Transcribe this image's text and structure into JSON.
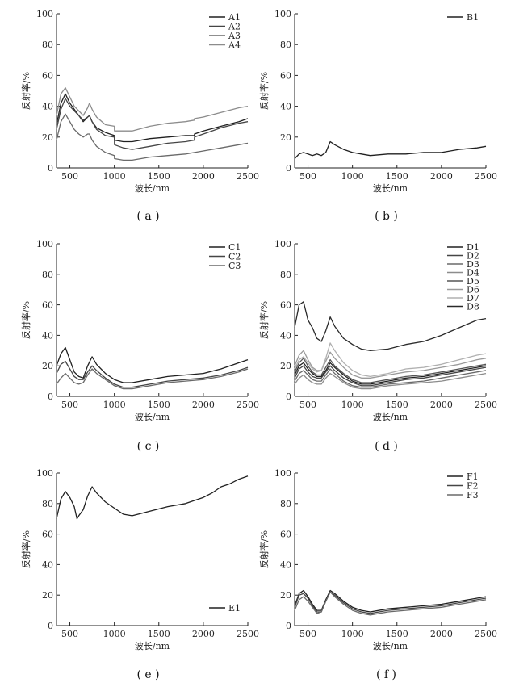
{
  "figure": {
    "panel_labels": [
      "( a )",
      "( b )",
      "( c )",
      "( d )",
      "( e )",
      "( f )"
    ]
  },
  "colors": {
    "axis": "#222222",
    "series": [
      "#202020",
      "#454545",
      "#6a6a6a",
      "#8c8c8c",
      "#555555",
      "#9a9a9a",
      "#b0b0b0",
      "#2a2a2a"
    ]
  },
  "chart_data": [
    {
      "id": "a",
      "type": "line",
      "xlabel": "波长/nm",
      "ylabel": "反射率/%",
      "xlim": [
        350,
        2500
      ],
      "ylim": [
        0,
        100
      ],
      "xticks": [
        500,
        1000,
        1500,
        2000,
        2500
      ],
      "yticks": [
        0,
        20,
        40,
        60,
        80,
        100
      ],
      "grid": false,
      "legend": "top-right",
      "series": [
        {
          "name": "A1",
          "x": [
            350,
            400,
            450,
            500,
            550,
            600,
            650,
            700,
            720,
            750,
            800,
            900,
            1000,
            1001,
            1100,
            1200,
            1400,
            1600,
            1800,
            1899,
            1900,
            2000,
            2200,
            2400,
            2500
          ],
          "y": [
            28,
            42,
            48,
            42,
            38,
            34,
            30,
            33,
            34,
            30,
            26,
            23,
            21,
            18,
            17,
            17,
            19,
            20,
            21,
            21,
            22,
            24,
            27,
            30,
            32
          ]
        },
        {
          "name": "A2",
          "x": [
            350,
            400,
            450,
            500,
            550,
            600,
            650,
            700,
            720,
            750,
            800,
            900,
            1000,
            1001,
            1100,
            1200,
            1400,
            1600,
            1800,
            1899,
            1900,
            2000,
            2200,
            2400,
            2500
          ],
          "y": [
            25,
            38,
            45,
            40,
            37,
            34,
            31,
            33,
            34,
            30,
            25,
            21,
            20,
            15,
            13,
            12,
            14,
            16,
            17,
            18,
            20,
            22,
            26,
            29,
            30
          ]
        },
        {
          "name": "A3",
          "x": [
            350,
            400,
            450,
            500,
            550,
            600,
            650,
            700,
            720,
            750,
            800,
            900,
            1000,
            1001,
            1100,
            1200,
            1400,
            1600,
            1800,
            1899,
            1900,
            2000,
            2200,
            2400,
            2500
          ],
          "y": [
            18,
            30,
            35,
            30,
            25,
            22,
            20,
            22,
            22,
            18,
            14,
            10,
            8,
            6,
            5,
            5,
            7,
            8,
            9,
            10,
            10,
            11,
            13,
            15,
            16
          ]
        },
        {
          "name": "A4",
          "x": [
            350,
            400,
            450,
            500,
            550,
            600,
            650,
            700,
            720,
            750,
            800,
            900,
            1000,
            1001,
            1100,
            1200,
            1400,
            1600,
            1800,
            1899,
            1900,
            2000,
            2200,
            2400,
            2500
          ],
          "y": [
            34,
            48,
            52,
            46,
            40,
            37,
            34,
            39,
            42,
            38,
            33,
            28,
            27,
            24,
            24,
            24,
            27,
            29,
            30,
            31,
            32,
            33,
            36,
            39,
            40
          ]
        }
      ]
    },
    {
      "id": "b",
      "type": "line",
      "xlabel": "波长/nm",
      "ylabel": "反射率/%",
      "xlim": [
        350,
        2500
      ],
      "ylim": [
        0,
        100
      ],
      "xticks": [
        500,
        1000,
        1500,
        2000,
        2500
      ],
      "yticks": [
        0,
        20,
        40,
        60,
        80,
        100
      ],
      "grid": false,
      "legend": "top-right",
      "series": [
        {
          "name": "B1",
          "x": [
            350,
            400,
            450,
            500,
            550,
            600,
            650,
            700,
            750,
            800,
            900,
            1000,
            1100,
            1200,
            1400,
            1600,
            1800,
            2000,
            2200,
            2400,
            2500
          ],
          "y": [
            6,
            9,
            10,
            9,
            8,
            9,
            8,
            10,
            17,
            15,
            12,
            10,
            9,
            8,
            9,
            9,
            10,
            10,
            12,
            13,
            14
          ]
        }
      ]
    },
    {
      "id": "c",
      "type": "line",
      "xlabel": "波长/nm",
      "ylabel": "反射率/%",
      "xlim": [
        350,
        2500
      ],
      "ylim": [
        0,
        100
      ],
      "xticks": [
        500,
        1000,
        1500,
        2000,
        2500
      ],
      "yticks": [
        0,
        20,
        40,
        60,
        80,
        100
      ],
      "grid": false,
      "legend": "top-right",
      "series": [
        {
          "name": "C1",
          "x": [
            350,
            400,
            450,
            500,
            550,
            600,
            650,
            700,
            750,
            800,
            900,
            1000,
            1100,
            1200,
            1400,
            1600,
            1800,
            2000,
            2200,
            2400,
            2500
          ],
          "y": [
            20,
            28,
            32,
            24,
            16,
            13,
            12,
            20,
            26,
            21,
            15,
            11,
            9,
            9,
            11,
            13,
            14,
            15,
            18,
            22,
            24
          ]
        },
        {
          "name": "C2",
          "x": [
            350,
            400,
            450,
            500,
            550,
            600,
            650,
            700,
            750,
            800,
            900,
            1000,
            1100,
            1200,
            1400,
            1600,
            1800,
            2000,
            2200,
            2400,
            2500
          ],
          "y": [
            15,
            21,
            23,
            18,
            13,
            11,
            11,
            16,
            20,
            17,
            12,
            8,
            6,
            6,
            8,
            10,
            11,
            12,
            14,
            17,
            19
          ]
        },
        {
          "name": "C3",
          "x": [
            350,
            400,
            450,
            500,
            550,
            600,
            650,
            700,
            750,
            800,
            900,
            1000,
            1100,
            1200,
            1400,
            1600,
            1800,
            2000,
            2200,
            2400,
            2500
          ],
          "y": [
            8,
            12,
            15,
            12,
            9,
            8,
            9,
            14,
            18,
            15,
            11,
            7,
            5,
            5,
            7,
            9,
            10,
            11,
            13,
            16,
            18
          ]
        }
      ]
    },
    {
      "id": "d",
      "type": "line",
      "xlabel": "波长/nm",
      "ylabel": "反射率/%",
      "xlim": [
        350,
        2500
      ],
      "ylim": [
        0,
        100
      ],
      "xticks": [
        500,
        1000,
        1500,
        2000,
        2500
      ],
      "yticks": [
        0,
        20,
        40,
        60,
        80,
        100
      ],
      "grid": false,
      "legend": "top-right",
      "series": [
        {
          "name": "D1",
          "x": [
            350,
            400,
            450,
            500,
            550,
            600,
            650,
            700,
            750,
            800,
            900,
            1000,
            1100,
            1200,
            1400,
            1600,
            1800,
            2000,
            2200,
            2400,
            2500
          ],
          "y": [
            14,
            20,
            22,
            18,
            15,
            13,
            13,
            17,
            22,
            19,
            14,
            10,
            8,
            8,
            10,
            12,
            13,
            15,
            17,
            19,
            20
          ]
        },
        {
          "name": "D2",
          "x": [
            350,
            400,
            450,
            500,
            550,
            600,
            650,
            700,
            750,
            800,
            900,
            1000,
            1100,
            1200,
            1400,
            1600,
            1800,
            2000,
            2200,
            2400,
            2500
          ],
          "y": [
            12,
            18,
            20,
            16,
            13,
            12,
            12,
            16,
            20,
            17,
            12,
            9,
            7,
            7,
            9,
            11,
            12,
            14,
            16,
            18,
            19
          ]
        },
        {
          "name": "D3",
          "x": [
            350,
            400,
            450,
            500,
            550,
            600,
            650,
            700,
            750,
            800,
            900,
            1000,
            1100,
            1200,
            1400,
            1600,
            1800,
            2000,
            2200,
            2400,
            2500
          ],
          "y": [
            10,
            15,
            17,
            14,
            11,
            10,
            10,
            14,
            18,
            15,
            10,
            7,
            6,
            6,
            8,
            9,
            10,
            12,
            14,
            16,
            17
          ]
        },
        {
          "name": "D4",
          "x": [
            350,
            400,
            450,
            500,
            550,
            600,
            650,
            700,
            750,
            800,
            900,
            1000,
            1100,
            1200,
            1400,
            1600,
            1800,
            2000,
            2200,
            2400,
            2500
          ],
          "y": [
            8,
            12,
            14,
            11,
            9,
            8,
            8,
            12,
            15,
            13,
            9,
            6,
            5,
            5,
            7,
            8,
            9,
            10,
            12,
            14,
            15
          ]
        },
        {
          "name": "D5",
          "x": [
            350,
            400,
            450,
            500,
            550,
            600,
            650,
            700,
            750,
            800,
            900,
            1000,
            1100,
            1200,
            1400,
            1600,
            1800,
            2000,
            2200,
            2400,
            2500
          ],
          "y": [
            16,
            22,
            25,
            20,
            16,
            14,
            14,
            19,
            24,
            20,
            15,
            11,
            9,
            9,
            11,
            13,
            14,
            16,
            18,
            20,
            21
          ]
        },
        {
          "name": "D6",
          "x": [
            350,
            400,
            450,
            500,
            550,
            600,
            650,
            700,
            750,
            800,
            900,
            1000,
            1100,
            1200,
            1400,
            1600,
            1800,
            2000,
            2200,
            2400,
            2500
          ],
          "y": [
            20,
            27,
            30,
            24,
            19,
            17,
            17,
            23,
            29,
            25,
            19,
            14,
            12,
            12,
            14,
            16,
            17,
            19,
            21,
            24,
            25
          ]
        },
        {
          "name": "D7",
          "x": [
            350,
            400,
            450,
            500,
            550,
            600,
            650,
            700,
            750,
            800,
            900,
            1000,
            1100,
            1200,
            1400,
            1600,
            1800,
            2000,
            2200,
            2400,
            2500
          ],
          "y": [
            18,
            24,
            26,
            22,
            18,
            16,
            17,
            25,
            35,
            30,
            22,
            17,
            14,
            13,
            15,
            18,
            19,
            21,
            24,
            27,
            28
          ]
        },
        {
          "name": "D8",
          "x": [
            350,
            400,
            450,
            500,
            550,
            600,
            650,
            700,
            750,
            800,
            900,
            1000,
            1100,
            1200,
            1400,
            1600,
            1800,
            2000,
            2200,
            2400,
            2500
          ],
          "y": [
            45,
            60,
            62,
            50,
            45,
            38,
            36,
            43,
            52,
            46,
            38,
            34,
            31,
            30,
            31,
            34,
            36,
            40,
            45,
            50,
            51
          ]
        }
      ]
    },
    {
      "id": "e",
      "type": "line",
      "xlabel": "波长/nm",
      "ylabel": "反射率/%",
      "xlim": [
        350,
        2500
      ],
      "ylim": [
        0,
        100
      ],
      "xticks": [
        500,
        1000,
        1500,
        2000,
        2500
      ],
      "yticks": [
        0,
        20,
        40,
        60,
        80,
        100
      ],
      "grid": false,
      "legend": "bottom-right",
      "series": [
        {
          "name": "E1",
          "x": [
            350,
            400,
            450,
            500,
            550,
            580,
            600,
            650,
            700,
            750,
            800,
            900,
            1000,
            1100,
            1200,
            1400,
            1600,
            1800,
            2000,
            2100,
            2200,
            2300,
            2400,
            2500
          ],
          "y": [
            70,
            83,
            88,
            84,
            78,
            70,
            72,
            76,
            85,
            91,
            87,
            81,
            77,
            73,
            72,
            75,
            78,
            80,
            84,
            87,
            91,
            93,
            96,
            98
          ]
        }
      ]
    },
    {
      "id": "f",
      "type": "line",
      "xlabel": "波长/nm",
      "ylabel": "反射率/%",
      "xlim": [
        350,
        2500
      ],
      "ylim": [
        0,
        100
      ],
      "xticks": [
        500,
        1000,
        1500,
        2000,
        2500
      ],
      "yticks": [
        0,
        20,
        40,
        60,
        80,
        100
      ],
      "grid": false,
      "legend": "top-right",
      "series": [
        {
          "name": "F1",
          "x": [
            350,
            400,
            450,
            500,
            550,
            600,
            650,
            700,
            750,
            800,
            900,
            1000,
            1100,
            1200,
            1400,
            1600,
            1800,
            2000,
            2200,
            2400,
            2500
          ],
          "y": [
            13,
            21,
            23,
            19,
            14,
            10,
            10,
            17,
            23,
            21,
            16,
            12,
            10,
            9,
            11,
            12,
            13,
            14,
            16,
            18,
            19
          ]
        },
        {
          "name": "F2",
          "x": [
            350,
            400,
            450,
            500,
            550,
            600,
            650,
            700,
            750,
            800,
            900,
            1000,
            1100,
            1200,
            1400,
            1600,
            1800,
            2000,
            2200,
            2400,
            2500
          ],
          "y": [
            12,
            20,
            21,
            18,
            13,
            9,
            9,
            16,
            22,
            20,
            15,
            11,
            9,
            8,
            10,
            11,
            12,
            13,
            15,
            17,
            18
          ]
        },
        {
          "name": "F3",
          "x": [
            350,
            400,
            450,
            500,
            550,
            600,
            650,
            700,
            750,
            800,
            900,
            1000,
            1100,
            1200,
            1400,
            1600,
            1800,
            2000,
            2200,
            2400,
            2500
          ],
          "y": [
            10,
            17,
            19,
            16,
            12,
            8,
            9,
            16,
            22,
            19,
            14,
            10,
            8,
            7,
            9,
            10,
            11,
            12,
            14,
            16,
            17
          ]
        }
      ]
    }
  ]
}
